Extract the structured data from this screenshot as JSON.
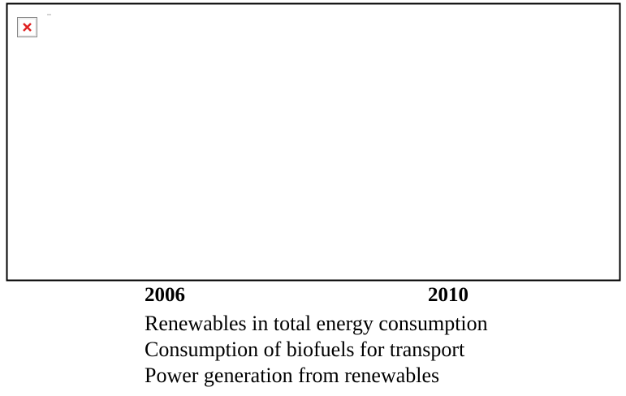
{
  "header": {
    "years": [
      "2006",
      "2010"
    ]
  },
  "items": [
    "Renewables in total energy consumption",
    "Consumption of biofuels for transport",
    "Power generation from renewables"
  ]
}
